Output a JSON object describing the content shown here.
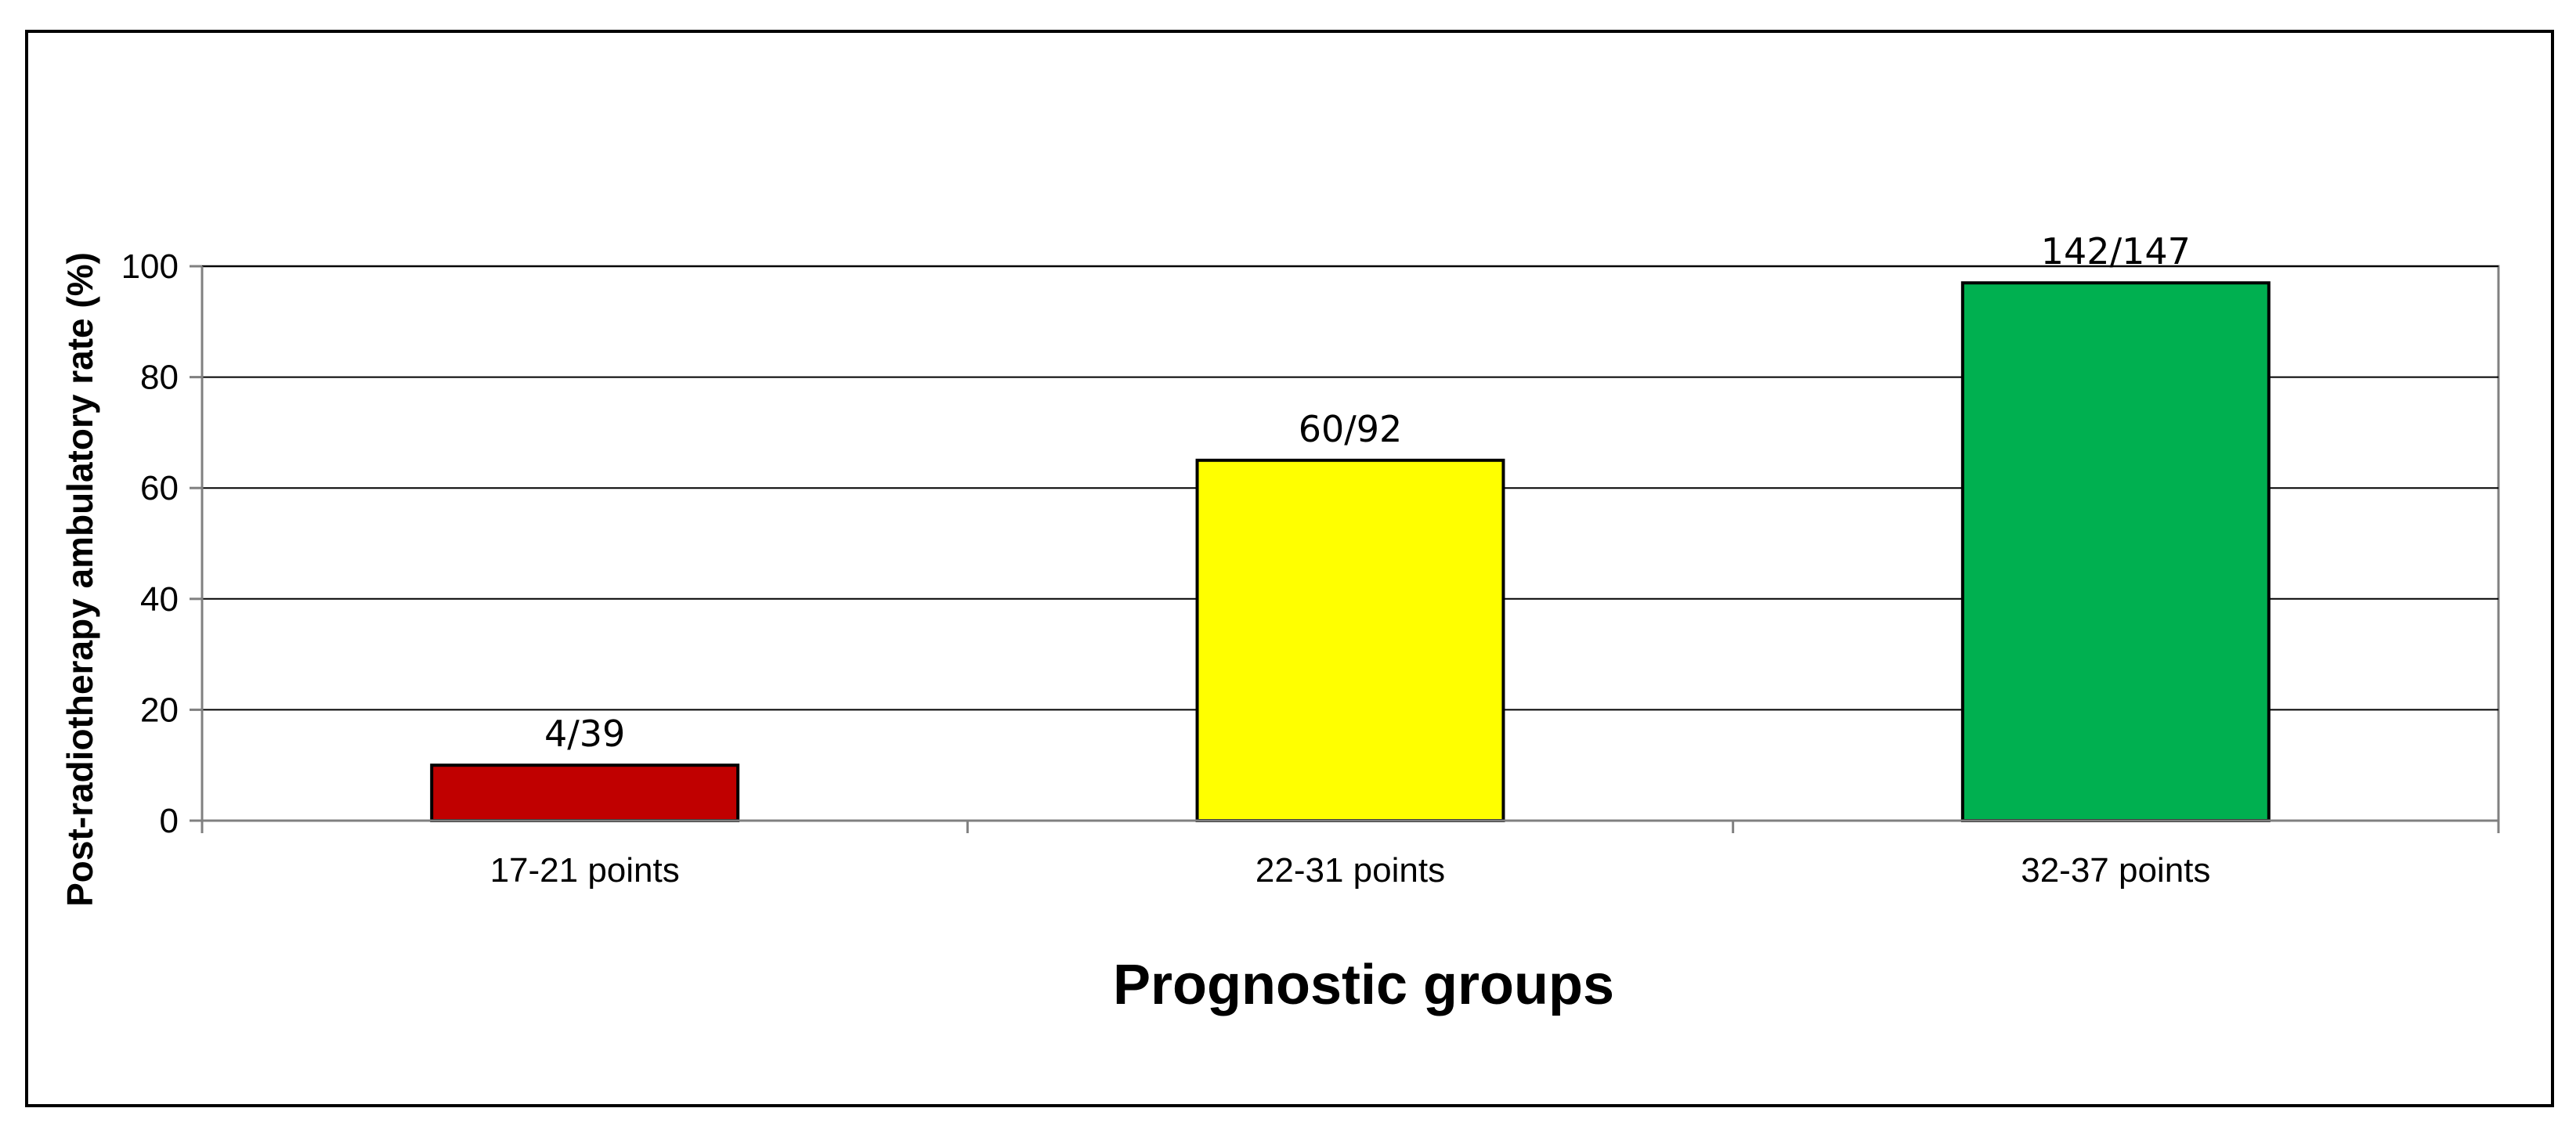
{
  "chart_data": {
    "type": "bar",
    "title": "",
    "xlabel": "Prognostic groups",
    "ylabel": "Post-radiotherapy ambulatory rate (%)",
    "categories": [
      "17-21 points",
      "22-31 points",
      "32-37 points"
    ],
    "values": [
      10,
      65,
      97
    ],
    "data_labels": [
      "4/39",
      "60/92",
      "142/147"
    ],
    "bar_colors": [
      "#c00000",
      "#ffff00",
      "#00b050"
    ],
    "ylim": [
      0,
      100
    ],
    "yticks": [
      0,
      20,
      40,
      60,
      80,
      100
    ],
    "ytick_labels": [
      "0",
      "20",
      "40",
      "60",
      "80",
      "100"
    ],
    "grid": true,
    "legend": "none"
  }
}
